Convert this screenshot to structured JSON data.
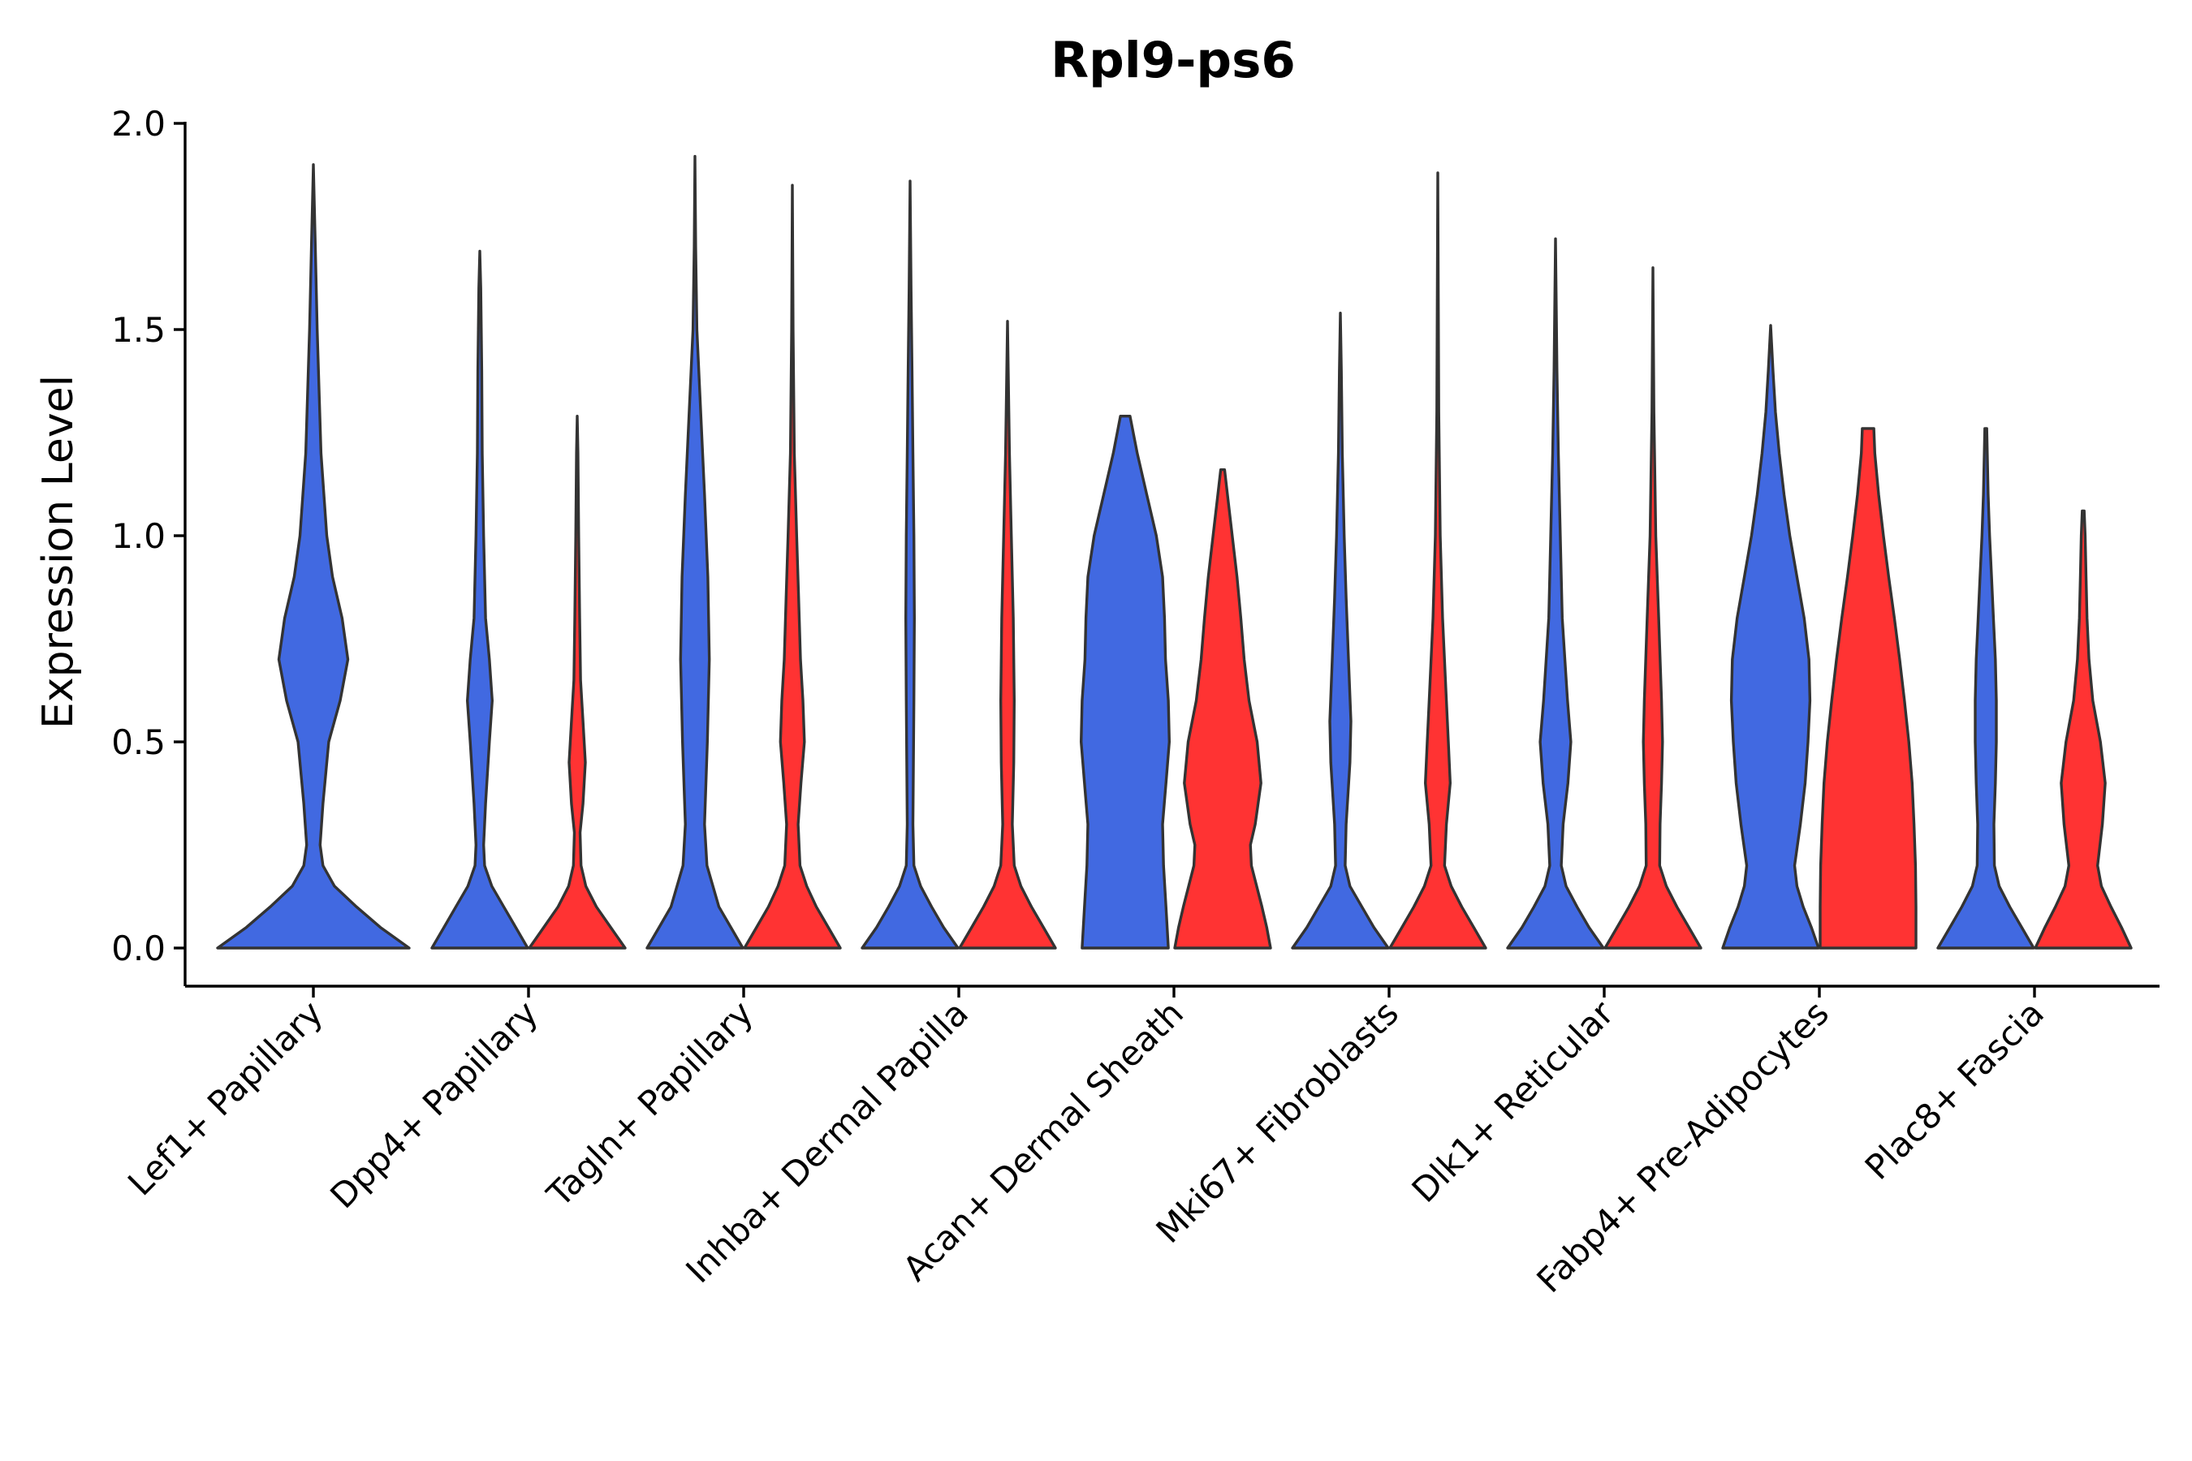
{
  "chart_data": {
    "type": "violin",
    "title": "Rpl9-ps6",
    "xlabel": "",
    "ylabel": "Expression Level",
    "ylim": [
      -0.1,
      2.0
    ],
    "yticks": [
      0.0,
      0.5,
      1.0,
      1.5,
      2.0
    ],
    "ytick_labels": [
      "0.0",
      "0.5",
      "1.0",
      "1.5",
      "2.0"
    ],
    "grid": false,
    "legend": "none",
    "series_colors": {
      "group_a": "#4169E1",
      "group_b": "#FF3333"
    },
    "outline_color": "#333333",
    "categories": [
      "Lef1+ Papillary",
      "Dpp4+ Papillary",
      "Tagln+ Papillary",
      "Inhba+ Dermal Papilla",
      "Acan+ Dermal Sheath",
      "Mki67+ Fibroblasts",
      "Dlk1+ Reticular",
      "Fabp4+ Pre-Adipocytes",
      "Plac8+ Fascia"
    ],
    "violins": [
      {
        "category": "Lef1+ Papillary",
        "group": "group_a",
        "color": "#4169E1",
        "max": 1.9,
        "profile": [
          [
            0.0,
            1.0
          ],
          [
            0.05,
            0.7
          ],
          [
            0.1,
            0.45
          ],
          [
            0.15,
            0.22
          ],
          [
            0.2,
            0.1
          ],
          [
            0.25,
            0.07
          ],
          [
            0.35,
            0.1
          ],
          [
            0.5,
            0.16
          ],
          [
            0.6,
            0.28
          ],
          [
            0.7,
            0.36
          ],
          [
            0.8,
            0.3
          ],
          [
            0.9,
            0.2
          ],
          [
            1.0,
            0.14
          ],
          [
            1.2,
            0.08
          ],
          [
            1.5,
            0.04
          ],
          [
            1.7,
            0.02
          ],
          [
            1.9,
            0.0
          ]
        ]
      },
      {
        "category": "Dpp4+ Papillary",
        "group": "group_a",
        "color": "#4169E1",
        "max": 1.69,
        "profile": [
          [
            0.0,
            1.0
          ],
          [
            0.05,
            0.75
          ],
          [
            0.1,
            0.5
          ],
          [
            0.15,
            0.25
          ],
          [
            0.2,
            0.1
          ],
          [
            0.25,
            0.08
          ],
          [
            0.35,
            0.12
          ],
          [
            0.5,
            0.2
          ],
          [
            0.6,
            0.26
          ],
          [
            0.7,
            0.2
          ],
          [
            0.8,
            0.12
          ],
          [
            1.0,
            0.08
          ],
          [
            1.2,
            0.05
          ],
          [
            1.4,
            0.04
          ],
          [
            1.6,
            0.02
          ],
          [
            1.69,
            0.0
          ]
        ]
      },
      {
        "category": "Dpp4+ Papillary",
        "group": "group_b",
        "color": "#FF3333",
        "max": 1.29,
        "profile": [
          [
            0.0,
            1.0
          ],
          [
            0.05,
            0.7
          ],
          [
            0.1,
            0.4
          ],
          [
            0.15,
            0.18
          ],
          [
            0.2,
            0.08
          ],
          [
            0.28,
            0.06
          ],
          [
            0.35,
            0.12
          ],
          [
            0.45,
            0.17
          ],
          [
            0.55,
            0.12
          ],
          [
            0.65,
            0.07
          ],
          [
            0.8,
            0.05
          ],
          [
            1.0,
            0.03
          ],
          [
            1.2,
            0.015
          ],
          [
            1.29,
            0.0
          ]
        ]
      },
      {
        "category": "Tagln+ Papillary",
        "group": "group_a",
        "color": "#4169E1",
        "max": 1.92,
        "profile": [
          [
            0.0,
            1.0
          ],
          [
            0.05,
            0.75
          ],
          [
            0.1,
            0.5
          ],
          [
            0.2,
            0.25
          ],
          [
            0.3,
            0.2
          ],
          [
            0.5,
            0.26
          ],
          [
            0.7,
            0.3
          ],
          [
            0.9,
            0.27
          ],
          [
            1.1,
            0.2
          ],
          [
            1.3,
            0.12
          ],
          [
            1.5,
            0.04
          ],
          [
            1.7,
            0.015
          ],
          [
            1.92,
            0.0
          ]
        ]
      },
      {
        "category": "Tagln+ Papillary",
        "group": "group_b",
        "color": "#FF3333",
        "max": 1.85,
        "profile": [
          [
            0.0,
            1.0
          ],
          [
            0.05,
            0.75
          ],
          [
            0.1,
            0.5
          ],
          [
            0.15,
            0.3
          ],
          [
            0.2,
            0.16
          ],
          [
            0.3,
            0.12
          ],
          [
            0.4,
            0.18
          ],
          [
            0.5,
            0.25
          ],
          [
            0.6,
            0.22
          ],
          [
            0.7,
            0.17
          ],
          [
            0.85,
            0.13
          ],
          [
            1.0,
            0.09
          ],
          [
            1.2,
            0.04
          ],
          [
            1.5,
            0.015
          ],
          [
            1.85,
            0.0
          ]
        ]
      },
      {
        "category": "Inhba+ Dermal Papilla",
        "group": "group_a",
        "color": "#4169E1",
        "max": 1.86,
        "profile": [
          [
            0.0,
            1.0
          ],
          [
            0.05,
            0.7
          ],
          [
            0.1,
            0.45
          ],
          [
            0.15,
            0.22
          ],
          [
            0.2,
            0.08
          ],
          [
            0.3,
            0.06
          ],
          [
            0.45,
            0.07
          ],
          [
            0.6,
            0.08
          ],
          [
            0.8,
            0.09
          ],
          [
            1.0,
            0.08
          ],
          [
            1.2,
            0.06
          ],
          [
            1.4,
            0.04
          ],
          [
            1.6,
            0.02
          ],
          [
            1.86,
            0.0
          ]
        ]
      },
      {
        "category": "Inhba+ Dermal Papilla",
        "group": "group_b",
        "color": "#FF3333",
        "max": 1.52,
        "profile": [
          [
            0.0,
            1.0
          ],
          [
            0.05,
            0.75
          ],
          [
            0.1,
            0.5
          ],
          [
            0.15,
            0.28
          ],
          [
            0.2,
            0.14
          ],
          [
            0.3,
            0.1
          ],
          [
            0.45,
            0.13
          ],
          [
            0.6,
            0.14
          ],
          [
            0.8,
            0.12
          ],
          [
            1.0,
            0.08
          ],
          [
            1.2,
            0.04
          ],
          [
            1.52,
            0.0
          ]
        ]
      },
      {
        "category": "Acan+ Dermal Sheath",
        "group": "group_a",
        "color": "#4169E1",
        "max": 1.29,
        "profile": [
          [
            0.0,
            0.9
          ],
          [
            0.1,
            0.85
          ],
          [
            0.2,
            0.8
          ],
          [
            0.3,
            0.78
          ],
          [
            0.4,
            0.85
          ],
          [
            0.5,
            0.92
          ],
          [
            0.6,
            0.9
          ],
          [
            0.7,
            0.84
          ],
          [
            0.8,
            0.82
          ],
          [
            0.9,
            0.78
          ],
          [
            1.0,
            0.65
          ],
          [
            1.1,
            0.45
          ],
          [
            1.2,
            0.25
          ],
          [
            1.29,
            0.1
          ]
        ]
      },
      {
        "category": "Acan+ Dermal Sheath",
        "group": "group_b",
        "color": "#FF3333",
        "max": 1.16,
        "profile": [
          [
            0.0,
            1.0
          ],
          [
            0.05,
            0.92
          ],
          [
            0.1,
            0.82
          ],
          [
            0.2,
            0.6
          ],
          [
            0.25,
            0.58
          ],
          [
            0.3,
            0.68
          ],
          [
            0.4,
            0.8
          ],
          [
            0.5,
            0.72
          ],
          [
            0.6,
            0.55
          ],
          [
            0.7,
            0.45
          ],
          [
            0.8,
            0.38
          ],
          [
            0.9,
            0.3
          ],
          [
            1.0,
            0.2
          ],
          [
            1.1,
            0.1
          ],
          [
            1.16,
            0.04
          ]
        ]
      },
      {
        "category": "Mki67+ Fibroblasts",
        "group": "group_a",
        "color": "#4169E1",
        "max": 1.54,
        "profile": [
          [
            0.0,
            1.0
          ],
          [
            0.05,
            0.7
          ],
          [
            0.1,
            0.45
          ],
          [
            0.15,
            0.2
          ],
          [
            0.2,
            0.1
          ],
          [
            0.3,
            0.12
          ],
          [
            0.45,
            0.2
          ],
          [
            0.55,
            0.22
          ],
          [
            0.7,
            0.17
          ],
          [
            0.85,
            0.12
          ],
          [
            1.0,
            0.08
          ],
          [
            1.2,
            0.04
          ],
          [
            1.4,
            0.02
          ],
          [
            1.54,
            0.0
          ]
        ]
      },
      {
        "category": "Mki67+ Fibroblasts",
        "group": "group_b",
        "color": "#FF3333",
        "max": 1.88,
        "profile": [
          [
            0.0,
            1.0
          ],
          [
            0.05,
            0.75
          ],
          [
            0.1,
            0.5
          ],
          [
            0.15,
            0.28
          ],
          [
            0.2,
            0.14
          ],
          [
            0.3,
            0.18
          ],
          [
            0.4,
            0.26
          ],
          [
            0.5,
            0.22
          ],
          [
            0.6,
            0.18
          ],
          [
            0.8,
            0.1
          ],
          [
            1.0,
            0.05
          ],
          [
            1.3,
            0.02
          ],
          [
            1.88,
            0.0
          ]
        ]
      },
      {
        "category": "Dlk1+ Reticular",
        "group": "group_a",
        "color": "#4169E1",
        "max": 1.72,
        "profile": [
          [
            0.0,
            1.0
          ],
          [
            0.05,
            0.7
          ],
          [
            0.1,
            0.45
          ],
          [
            0.15,
            0.22
          ],
          [
            0.2,
            0.12
          ],
          [
            0.3,
            0.16
          ],
          [
            0.4,
            0.26
          ],
          [
            0.5,
            0.32
          ],
          [
            0.6,
            0.25
          ],
          [
            0.8,
            0.14
          ],
          [
            1.0,
            0.1
          ],
          [
            1.2,
            0.06
          ],
          [
            1.4,
            0.03
          ],
          [
            1.72,
            0.0
          ]
        ]
      },
      {
        "category": "Dlk1+ Reticular",
        "group": "group_b",
        "color": "#FF3333",
        "max": 1.65,
        "profile": [
          [
            0.0,
            1.0
          ],
          [
            0.05,
            0.75
          ],
          [
            0.1,
            0.5
          ],
          [
            0.15,
            0.28
          ],
          [
            0.2,
            0.14
          ],
          [
            0.3,
            0.15
          ],
          [
            0.4,
            0.18
          ],
          [
            0.5,
            0.2
          ],
          [
            0.6,
            0.18
          ],
          [
            0.8,
            0.12
          ],
          [
            1.0,
            0.06
          ],
          [
            1.3,
            0.02
          ],
          [
            1.65,
            0.0
          ]
        ]
      },
      {
        "category": "Fabp4+ Pre-Adipocytes",
        "group": "group_a",
        "color": "#4169E1",
        "max": 1.51,
        "profile": [
          [
            0.0,
            1.0
          ],
          [
            0.05,
            0.85
          ],
          [
            0.1,
            0.68
          ],
          [
            0.15,
            0.55
          ],
          [
            0.2,
            0.5
          ],
          [
            0.3,
            0.62
          ],
          [
            0.4,
            0.72
          ],
          [
            0.5,
            0.78
          ],
          [
            0.6,
            0.82
          ],
          [
            0.7,
            0.8
          ],
          [
            0.8,
            0.7
          ],
          [
            0.9,
            0.55
          ],
          [
            1.0,
            0.4
          ],
          [
            1.1,
            0.28
          ],
          [
            1.2,
            0.18
          ],
          [
            1.3,
            0.1
          ],
          [
            1.4,
            0.05
          ],
          [
            1.51,
            0.0
          ]
        ]
      },
      {
        "category": "Fabp4+ Pre-Adipocytes",
        "group": "group_b",
        "color": "#FF3333",
        "max": 1.26,
        "profile": [
          [
            0.0,
            1.0
          ],
          [
            0.1,
            1.0
          ],
          [
            0.2,
            0.99
          ],
          [
            0.3,
            0.96
          ],
          [
            0.4,
            0.92
          ],
          [
            0.5,
            0.85
          ],
          [
            0.6,
            0.76
          ],
          [
            0.7,
            0.66
          ],
          [
            0.8,
            0.55
          ],
          [
            0.9,
            0.43
          ],
          [
            1.0,
            0.32
          ],
          [
            1.1,
            0.22
          ],
          [
            1.2,
            0.14
          ],
          [
            1.26,
            0.12
          ]
        ]
      },
      {
        "category": "Plac8+ Fascia",
        "group": "group_a",
        "color": "#4169E1",
        "max": 1.26,
        "profile": [
          [
            0.0,
            1.0
          ],
          [
            0.05,
            0.75
          ],
          [
            0.1,
            0.5
          ],
          [
            0.15,
            0.28
          ],
          [
            0.2,
            0.18
          ],
          [
            0.3,
            0.17
          ],
          [
            0.4,
            0.2
          ],
          [
            0.5,
            0.22
          ],
          [
            0.6,
            0.22
          ],
          [
            0.7,
            0.2
          ],
          [
            0.8,
            0.16
          ],
          [
            0.9,
            0.12
          ],
          [
            1.0,
            0.08
          ],
          [
            1.1,
            0.05
          ],
          [
            1.26,
            0.02
          ]
        ]
      },
      {
        "category": "Plac8+ Fascia",
        "group": "group_b",
        "color": "#FF3333",
        "max": 1.06,
        "profile": [
          [
            0.0,
            1.0
          ],
          [
            0.05,
            0.8
          ],
          [
            0.1,
            0.58
          ],
          [
            0.15,
            0.38
          ],
          [
            0.2,
            0.3
          ],
          [
            0.3,
            0.4
          ],
          [
            0.4,
            0.46
          ],
          [
            0.5,
            0.36
          ],
          [
            0.6,
            0.2
          ],
          [
            0.7,
            0.12
          ],
          [
            0.8,
            0.08
          ],
          [
            0.9,
            0.06
          ],
          [
            1.0,
            0.04
          ],
          [
            1.06,
            0.02
          ]
        ]
      }
    ]
  }
}
